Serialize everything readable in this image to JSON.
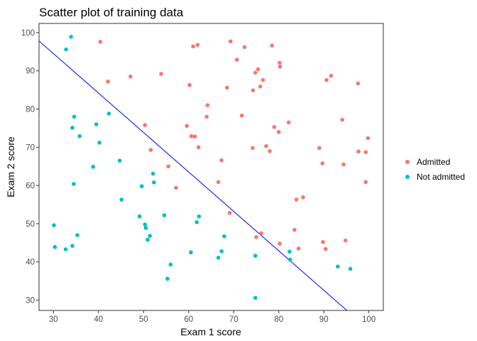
{
  "chart_data": {
    "type": "scatter",
    "title": "Scatter plot of training data",
    "xlabel": "Exam 1 score",
    "ylabel": "Exam 2 score",
    "xlim": [
      26.8,
      103.2
    ],
    "ylim": [
      27.3,
      102.4
    ],
    "xticks": [
      30,
      40,
      50,
      60,
      70,
      80,
      90,
      100
    ],
    "yticks": [
      30,
      40,
      50,
      60,
      70,
      80,
      90,
      100
    ],
    "grid": false,
    "legend_position": "right",
    "series": [
      {
        "name": "Admitted",
        "color": "#F8766D",
        "points": [
          [
            40.4,
            97.6
          ],
          [
            42.1,
            87.2
          ],
          [
            47.1,
            88.5
          ],
          [
            53.9,
            89.2
          ],
          [
            60.2,
            86.3
          ],
          [
            61.0,
            96.4
          ],
          [
            62.0,
            96.8
          ],
          [
            64.2,
            81.0
          ],
          [
            68.5,
            85.6
          ],
          [
            69.3,
            97.7
          ],
          [
            70.7,
            92.9
          ],
          [
            72.4,
            96.2
          ],
          [
            74.8,
            89.5
          ],
          [
            74.3,
            84.9
          ],
          [
            75.4,
            90.4
          ],
          [
            75.9,
            85.9
          ],
          [
            76.5,
            87.6
          ],
          [
            78.5,
            96.6
          ],
          [
            80.2,
            92.1
          ],
          [
            80.3,
            91.1
          ],
          [
            91.6,
            88.7
          ],
          [
            90.6,
            87.6
          ],
          [
            97.6,
            86.7
          ],
          [
            59.6,
            75.6
          ],
          [
            64.0,
            78.0
          ],
          [
            71.8,
            78.3
          ],
          [
            50.3,
            75.8
          ],
          [
            60.6,
            72.9
          ],
          [
            61.4,
            72.8
          ],
          [
            62.2,
            70.0
          ],
          [
            51.6,
            69.3
          ],
          [
            74.2,
            69.8
          ],
          [
            77.2,
            70.3
          ],
          [
            78.0,
            69.0
          ],
          [
            79.0,
            75.3
          ],
          [
            80.0,
            74.0
          ],
          [
            82.2,
            76.5
          ],
          [
            89.0,
            69.8
          ],
          [
            89.7,
            65.8
          ],
          [
            94.1,
            77.2
          ],
          [
            94.4,
            65.5
          ],
          [
            97.7,
            68.9
          ],
          [
            99.3,
            68.7
          ],
          [
            99.8,
            72.4
          ],
          [
            55.5,
            65.0
          ],
          [
            57.2,
            59.4
          ],
          [
            66.6,
            60.9
          ],
          [
            67.3,
            66.6
          ],
          [
            83.9,
            56.3
          ],
          [
            85.4,
            56.9
          ],
          [
            99.3,
            60.9
          ],
          [
            69.1,
            52.8
          ],
          [
            83.5,
            48.4
          ],
          [
            76.1,
            47.5
          ],
          [
            80.2,
            44.8
          ],
          [
            84.4,
            43.5
          ],
          [
            89.8,
            45.2
          ],
          [
            90.4,
            43.4
          ],
          [
            94.8,
            45.6
          ],
          [
            75.0,
            46.5
          ]
        ]
      },
      {
        "name": "Not admitted",
        "color": "#00BFC4",
        "points": [
          [
            34.6,
            78.0
          ],
          [
            30.3,
            43.9
          ],
          [
            35.8,
            72.9
          ],
          [
            45.1,
            56.3
          ],
          [
            32.8,
            95.6
          ],
          [
            34.2,
            44.2
          ],
          [
            33.9,
            98.9
          ],
          [
            34.2,
            75.1
          ],
          [
            34.5,
            60.4
          ],
          [
            39.5,
            76.0
          ],
          [
            40.2,
            71.2
          ],
          [
            42.3,
            78.8
          ],
          [
            44.7,
            66.5
          ],
          [
            38.8,
            64.9
          ],
          [
            30.1,
            49.6
          ],
          [
            35.3,
            47.0
          ],
          [
            32.7,
            43.3
          ],
          [
            49.6,
            59.8
          ],
          [
            52.1,
            63.1
          ],
          [
            52.3,
            60.8
          ],
          [
            49.1,
            51.9
          ],
          [
            50.3,
            49.8
          ],
          [
            50.5,
            48.9
          ],
          [
            51.4,
            46.8
          ],
          [
            50.9,
            45.8
          ],
          [
            54.6,
            52.2
          ],
          [
            55.3,
            35.6
          ],
          [
            56.0,
            39.3
          ],
          [
            60.5,
            42.5
          ],
          [
            61.8,
            50.4
          ],
          [
            62.3,
            51.9
          ],
          [
            66.6,
            41.1
          ],
          [
            67.3,
            42.8
          ],
          [
            67.9,
            46.7
          ],
          [
            74.8,
            41.6
          ],
          [
            74.8,
            30.6
          ],
          [
            82.4,
            42.7
          ],
          [
            82.5,
            40.6
          ],
          [
            93.1,
            38.8
          ],
          [
            95.9,
            38.2
          ]
        ]
      }
    ],
    "decision_boundary": {
      "type": "line",
      "color": "#0000FF",
      "points": [
        [
          26.8,
          97.8
        ],
        [
          95.5,
          26.9
        ]
      ]
    }
  }
}
